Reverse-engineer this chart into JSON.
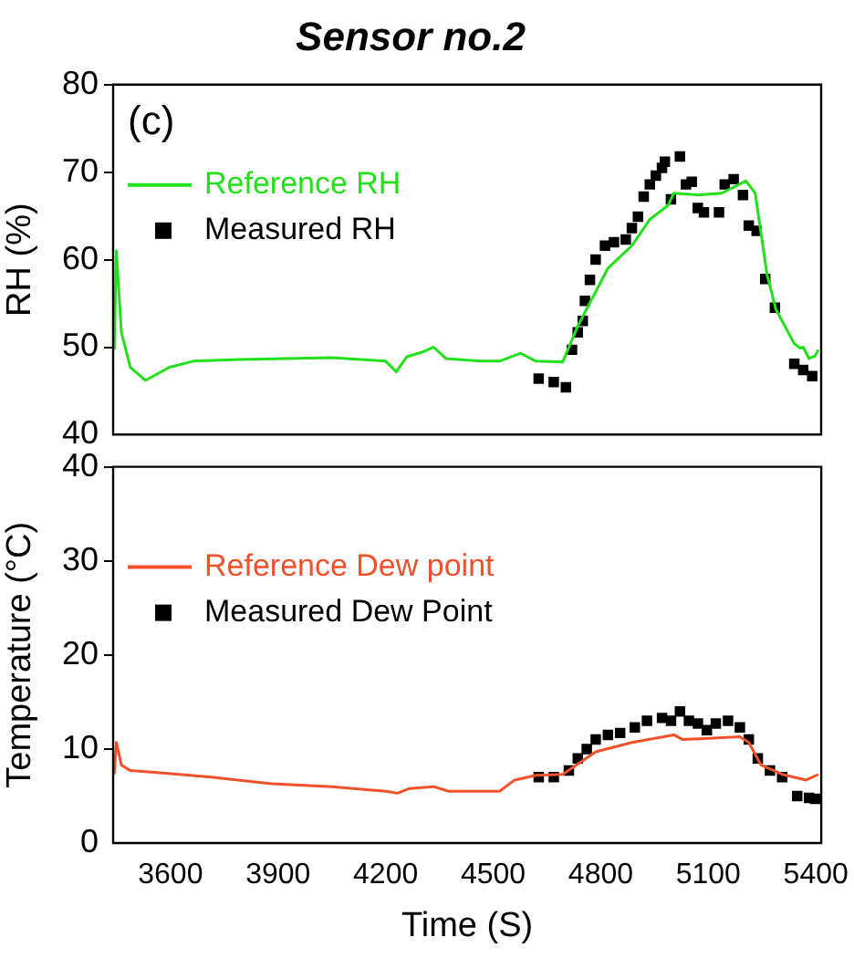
{
  "chart_data": [
    {
      "type": "line",
      "title": "Sensor no.2",
      "ylabel": "RH (%)",
      "annotations": [
        "(c)"
      ],
      "xlim": [
        3440,
        5415
      ],
      "xticks": [
        3600,
        3900,
        4200,
        4500,
        4800,
        5100,
        5400
      ],
      "ylim": [
        40,
        80
      ],
      "yticks": [
        40,
        50,
        60,
        70,
        80
      ],
      "tick_labels": "y",
      "legend": "top left",
      "series": [
        {
          "name": "Reference RH",
          "color": "#22e01a",
          "x": [
            3443,
            3449,
            3463,
            3488,
            3530,
            3597,
            3664,
            3798,
            4049,
            4200,
            4230,
            4259,
            4300,
            4334,
            4368,
            4468,
            4518,
            4577,
            4619,
            4694,
            4736,
            4820,
            4887,
            4937,
            4988,
            5004,
            5071,
            5138,
            5205,
            5231,
            5264,
            5289,
            5340,
            5356,
            5365,
            5381,
            5398,
            5407
          ],
          "values": [
            49.7,
            61,
            51.7,
            47.7,
            46.2,
            47.7,
            48.4,
            48.6,
            48.8,
            48.4,
            47.2,
            48.9,
            49.4,
            50.0,
            48.7,
            48.4,
            48.4,
            49.3,
            48.4,
            48.3,
            52.4,
            59.0,
            61.6,
            64.6,
            66.2,
            67.6,
            67.4,
            67.6,
            69.0,
            67.6,
            58.3,
            54.3,
            50.4,
            49.9,
            50.0,
            48.7,
            49.0,
            49.7
          ]
        },
        {
          "name": "Measured RH",
          "type": "scatter",
          "marker": "square",
          "color": "#000000",
          "x": [
            4627,
            4669,
            4703,
            4720,
            4736,
            4750,
            4756,
            4770,
            4786,
            4812,
            4837,
            4870,
            4887,
            4904,
            4920,
            4937,
            4954,
            4971,
            4979,
            4996,
            5021,
            5038,
            5054,
            5071,
            5088,
            5130,
            5146,
            5171,
            5197,
            5213,
            5235,
            5259,
            5286,
            5340,
            5365,
            5390
          ],
          "values": [
            46.4,
            46.0,
            45.4,
            49.7,
            51.7,
            53.0,
            55.3,
            57.7,
            60.0,
            61.6,
            62.0,
            62.3,
            63.6,
            64.9,
            67.2,
            68.6,
            69.6,
            70.5,
            71.2,
            66.9,
            71.8,
            68.6,
            68.9,
            65.9,
            65.4,
            65.4,
            68.6,
            69.2,
            67.4,
            63.9,
            63.3,
            57.8,
            54.5,
            48.1,
            47.4,
            46.7
          ]
        }
      ]
    },
    {
      "type": "line",
      "xlabel": "Time (S)",
      "ylabel": "Temperature (°C)",
      "xlim": [
        3440,
        5415
      ],
      "xticks": [
        3600,
        3900,
        4200,
        4500,
        4800,
        5100,
        5400
      ],
      "ylim": [
        0,
        40
      ],
      "yticks": [
        0,
        10,
        20,
        30,
        40
      ],
      "legend": "top left",
      "series": [
        {
          "name": "Reference Dew point",
          "color": "#f0502a",
          "x": [
            3443,
            3449,
            3463,
            3488,
            3563,
            3714,
            3882,
            4049,
            4200,
            4233,
            4267,
            4334,
            4376,
            4518,
            4560,
            4619,
            4694,
            4786,
            4887,
            5004,
            5029,
            5138,
            5188,
            5213,
            5247,
            5306,
            5373,
            5407
          ],
          "values": [
            7.3,
            10.7,
            8.3,
            7.7,
            7.5,
            7.0,
            6.3,
            6.0,
            5.5,
            5.3,
            5.8,
            6.0,
            5.5,
            5.5,
            6.7,
            7.2,
            7.3,
            9.7,
            10.7,
            11.5,
            11.0,
            11.2,
            11.3,
            10.7,
            8.3,
            7.3,
            6.7,
            7.3
          ]
        },
        {
          "name": "Measured Dew Point",
          "type": "scatter",
          "marker": "square",
          "color": "#000000",
          "x": [
            4627,
            4669,
            4711,
            4736,
            4761,
            4786,
            4820,
            4854,
            4895,
            4929,
            4971,
            4996,
            5021,
            5046,
            5071,
            5096,
            5121,
            5155,
            5188,
            5213,
            5238,
            5272,
            5306,
            5348,
            5381,
            5398
          ],
          "values": [
            7.0,
            7.0,
            7.7,
            9.0,
            10.0,
            11.0,
            11.5,
            11.7,
            12.3,
            13.0,
            13.3,
            13.0,
            14.0,
            13.0,
            12.7,
            12.0,
            12.7,
            13.0,
            12.3,
            11.0,
            9.0,
            7.7,
            7.0,
            5.0,
            4.8,
            4.7
          ]
        }
      ]
    }
  ]
}
